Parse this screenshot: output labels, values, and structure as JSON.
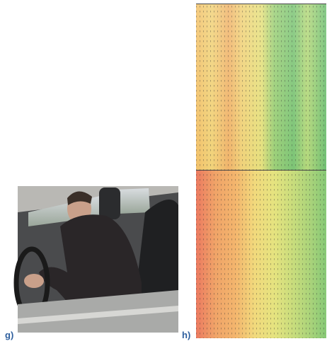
{
  "panels": [
    {
      "label": "g)"
    },
    {
      "label": "h)"
    }
  ]
}
